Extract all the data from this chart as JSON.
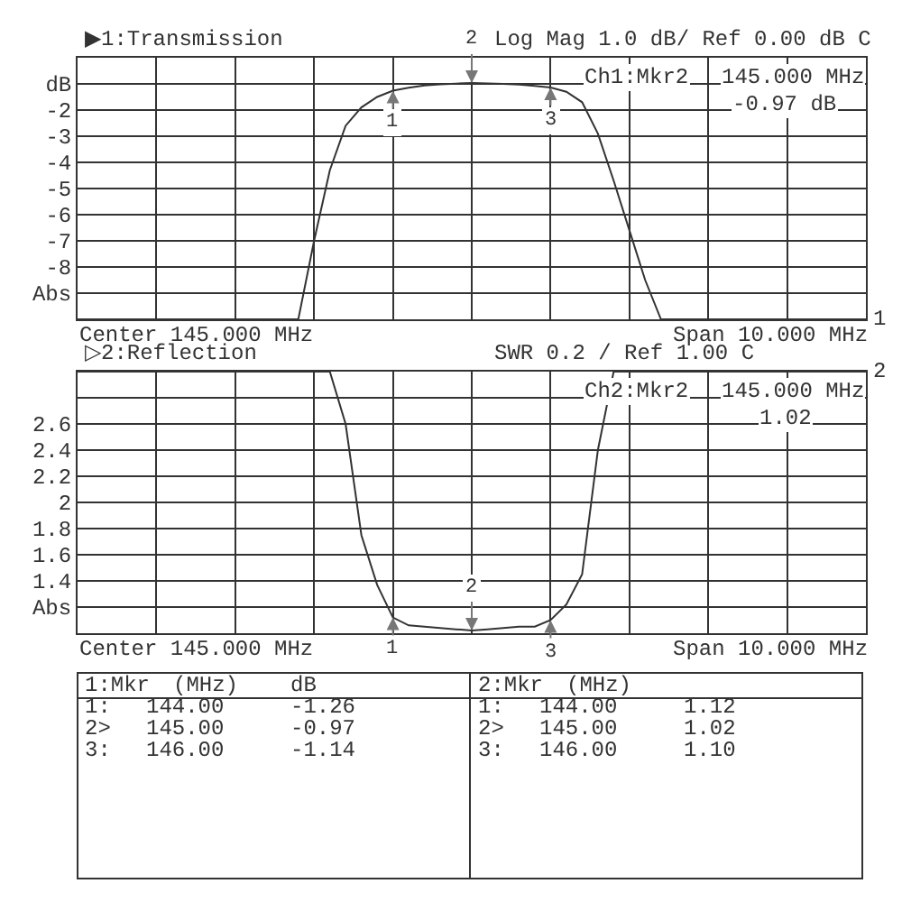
{
  "chart_data": [
    {
      "type": "line",
      "title": "▶1:Transmission",
      "subtitle": "Log Mag 1.0 dB/ Ref 0.00 dB C",
      "categories": [
        null,
        null,
        null,
        null,
        null,
        null,
        null,
        null,
        null,
        null,
        null,
        null,
        null,
        null,
        null,
        null,
        null,
        null,
        null,
        null,
        null,
        null,
        null,
        null,
        null,
        null,
        null,
        null,
        null,
        null,
        null,
        null,
        null,
        null,
        null,
        null,
        null,
        null,
        null,
        null,
        null,
        null,
        null,
        null,
        null,
        null,
        null,
        null,
        null,
        null,
        null
      ],
      "series": [
        {
          "color": "#333333",
          "values": [
            -10,
            -10,
            -10,
            -10,
            -10,
            -10,
            -10,
            -10,
            -10,
            -10,
            -10,
            -10,
            -10,
            -10,
            -10,
            -7,
            -4.3,
            -2.6,
            -1.9,
            -1.5,
            -1.26,
            -1.15,
            -1.06,
            -1.02,
            -0.99,
            -0.97,
            -0.98,
            -1.0,
            -1.03,
            -1.08,
            -1.14,
            -1.3,
            -1.7,
            -2.9,
            -4.7,
            -6.6,
            -8.5,
            -10,
            -10,
            -10,
            -10,
            -10,
            -10,
            -10,
            -10,
            -10,
            -10,
            -10,
            -10,
            -10,
            -10
          ]
        }
      ],
      "ylim": [
        -10,
        0
      ],
      "yticks": [
        {
          "value": 0,
          "label": null
        },
        {
          "value": -1,
          "label": "dB"
        },
        -2,
        -3,
        -4,
        -5,
        -6,
        -7,
        -8,
        {
          "value": -9,
          "label": "Abs"
        },
        {
          "value": -10,
          "label": null
        }
      ],
      "tick_labels": "y",
      "grid": true,
      "annotations": [
        {
          "text": "1",
          "y": -1.26
        },
        {
          "text": "2",
          "y": -0.97
        },
        {
          "text": "3",
          "y": -1.14
        },
        "Ch1:Mkr2",
        "145.000 MHz",
        "-0.97 dB",
        "Center 145.000 MHz",
        "Span 10.000 MHz",
        "1"
      ]
    },
    {
      "type": "line",
      "title": "▷2:Reflection",
      "subtitle": "SWR 0.2 / Ref 1.00 C",
      "categories": [
        null,
        null,
        null,
        null,
        null,
        null,
        null,
        null,
        null,
        null,
        null,
        null,
        null,
        null,
        null,
        null,
        null,
        null,
        null,
        null,
        null,
        null,
        null,
        null,
        null,
        null,
        null,
        null,
        null,
        null,
        null,
        null,
        null,
        null,
        null,
        null,
        null,
        null,
        null,
        null,
        null,
        null,
        null,
        null,
        null,
        null,
        null,
        null,
        null,
        null,
        null
      ],
      "series": [
        {
          "color": "#333333",
          "values": [
            3.0,
            3.0,
            3.0,
            3.0,
            3.0,
            3.0,
            3.0,
            3.0,
            3.0,
            3.0,
            3.0,
            3.0,
            3.0,
            3.0,
            3.0,
            3.0,
            3.0,
            2.6,
            1.75,
            1.37,
            1.12,
            1.06,
            1.05,
            1.04,
            1.03,
            1.02,
            1.03,
            1.04,
            1.05,
            1.05,
            1.1,
            1.22,
            1.45,
            2.4,
            3.0,
            3.0,
            3.0,
            3.0,
            3.0,
            3.0,
            3.0,
            3.0,
            3.0,
            3.0,
            3.0,
            3.0,
            3.0,
            3.0,
            3.0,
            3.0,
            3.0
          ]
        }
      ],
      "ylim": [
        1,
        3
      ],
      "yticks": [
        {
          "value": 1,
          "label": null
        },
        {
          "value": 1.2,
          "label": "Abs"
        },
        1.4,
        1.6,
        1.8,
        2,
        2.2,
        2.4,
        2.6,
        {
          "value": 2.8,
          "label": null
        },
        {
          "value": 3,
          "label": null
        }
      ],
      "tick_labels": "y",
      "grid": true,
      "annotations": [
        {
          "text": "1",
          "y": 1.12
        },
        {
          "text": "2",
          "y": 1.02
        },
        {
          "text": "3",
          "y": 1.1
        },
        "Ch2:Mkr2",
        "145.000 MHz",
        "1.02",
        "Center 145.000 MHz",
        "Span 10.000 MHz",
        "2"
      ]
    },
    {
      "type": "other",
      "annotations": [
        "1:Mkr (MHz) dB",
        "1: 144.00 -1.26",
        "2> 145.00 -0.97",
        "3: 146.00 -1.14",
        "2:Mkr (MHz)",
        "1: 144.00 1.12",
        "2> 145.00 1.02",
        "3: 146.00 1.10"
      ]
    }
  ]
}
